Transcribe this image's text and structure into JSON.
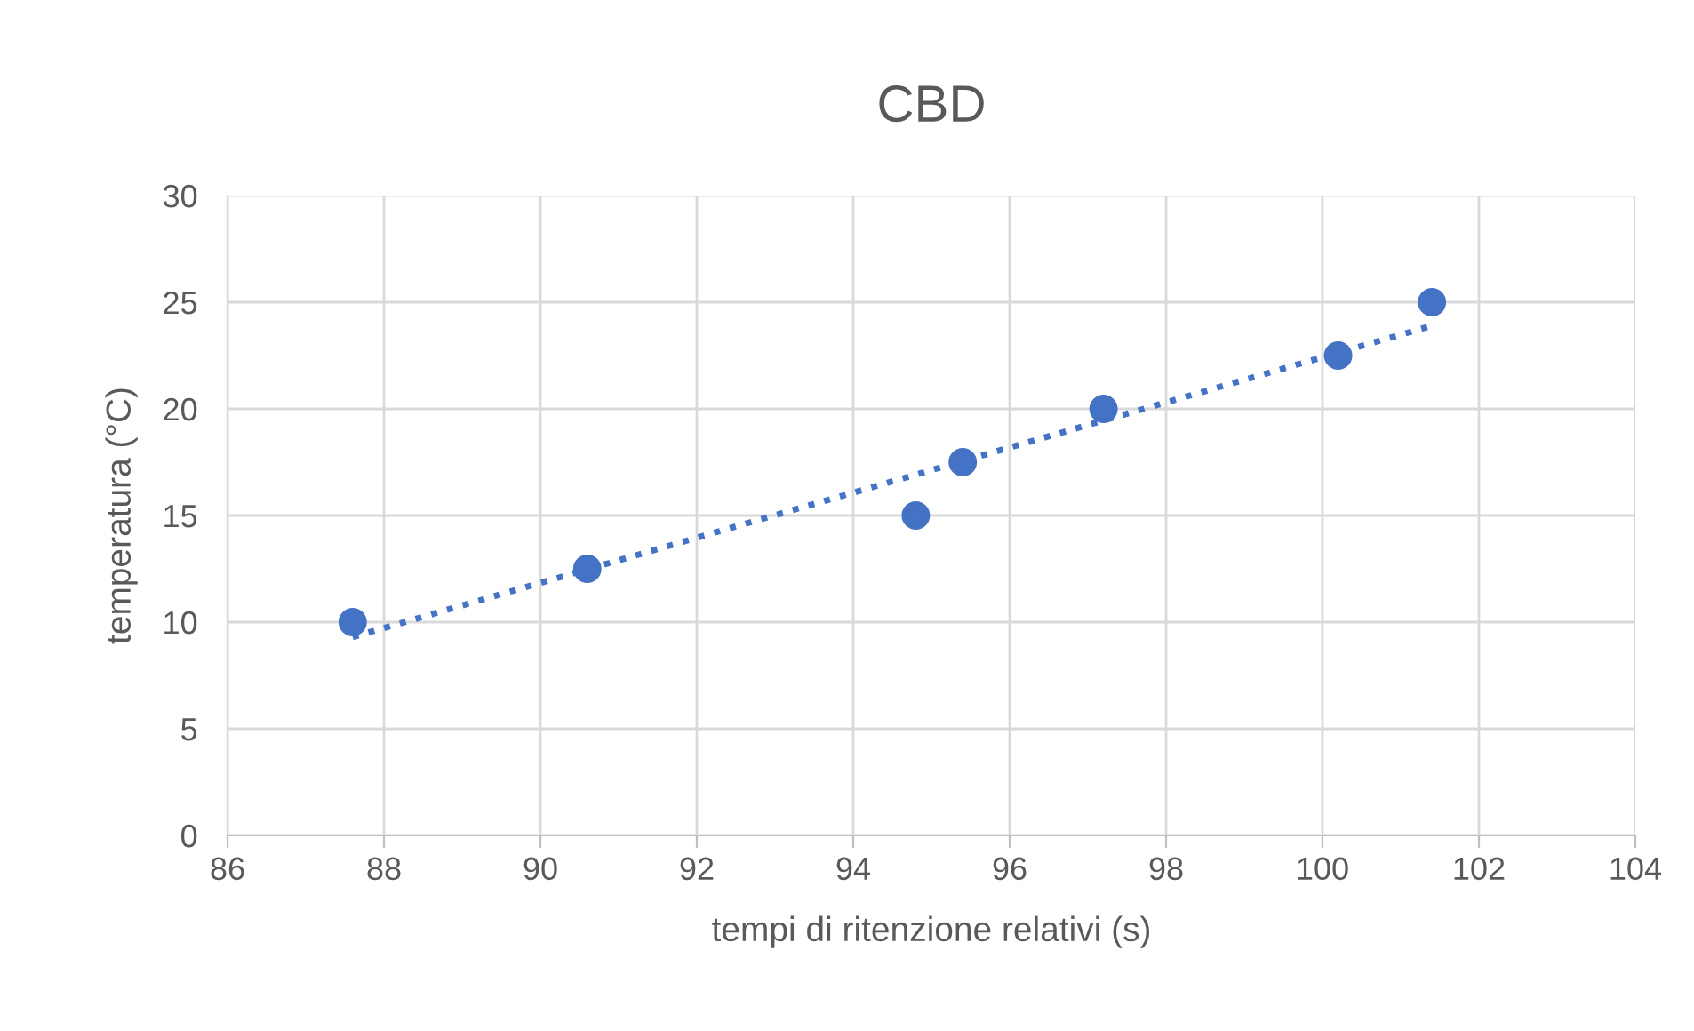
{
  "chart_data": {
    "type": "scatter",
    "title": "CBD",
    "xlabel": "tempi di ritenzione relativi (s)",
    "ylabel": "temperatura (°C)",
    "x": [
      87.6,
      90.6,
      94.8,
      95.4,
      97.2,
      100.2,
      101.4
    ],
    "series": [
      {
        "color": "#4472c4",
        "marker": "circle",
        "values": [
          10,
          12.5,
          15,
          17.5,
          20,
          22.5,
          25
        ]
      },
      {
        "type": "line",
        "color": "#4472c4",
        "line_style": "dotted",
        "marker": "none",
        "x": [
          87.6,
          101.4
        ],
        "values": [
          9.3,
          23.9
        ]
      }
    ],
    "xlim": [
      86,
      104
    ],
    "xticks": [
      86,
      88,
      90,
      92,
      94,
      96,
      98,
      100,
      102,
      104
    ],
    "ylim": [
      0,
      30
    ],
    "yticks": [
      0,
      5,
      10,
      15,
      20,
      25,
      30
    ],
    "grid": true,
    "legend": false
  }
}
